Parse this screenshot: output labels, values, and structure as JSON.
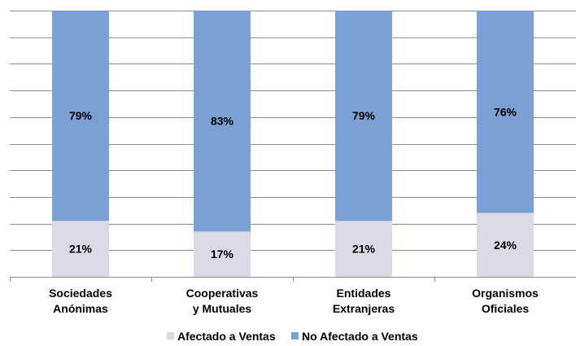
{
  "chart_data": {
    "type": "bar",
    "stacked": true,
    "percent_stacked": true,
    "categories": [
      "Sociedades\nAnónimas",
      "Cooperativas\ny Mutuales",
      "Entidades\nExtranjeras",
      "Organismos\nOficiales"
    ],
    "series": [
      {
        "name": "Afectado a Ventas",
        "values": [
          21,
          17,
          21,
          24
        ],
        "labels": [
          "21%",
          "17%",
          "21%",
          "24%"
        ],
        "color": "#d9d9e8"
      },
      {
        "name": "No Afectado a Ventas",
        "values": [
          79,
          83,
          79,
          76
        ],
        "labels": [
          "79%",
          "83%",
          "79%",
          "76%"
        ],
        "color": "#7ba0d4"
      }
    ],
    "title": "",
    "xlabel": "",
    "ylabel": "",
    "ylim": [
      0,
      100
    ],
    "grid": true,
    "legend": "bottom"
  }
}
